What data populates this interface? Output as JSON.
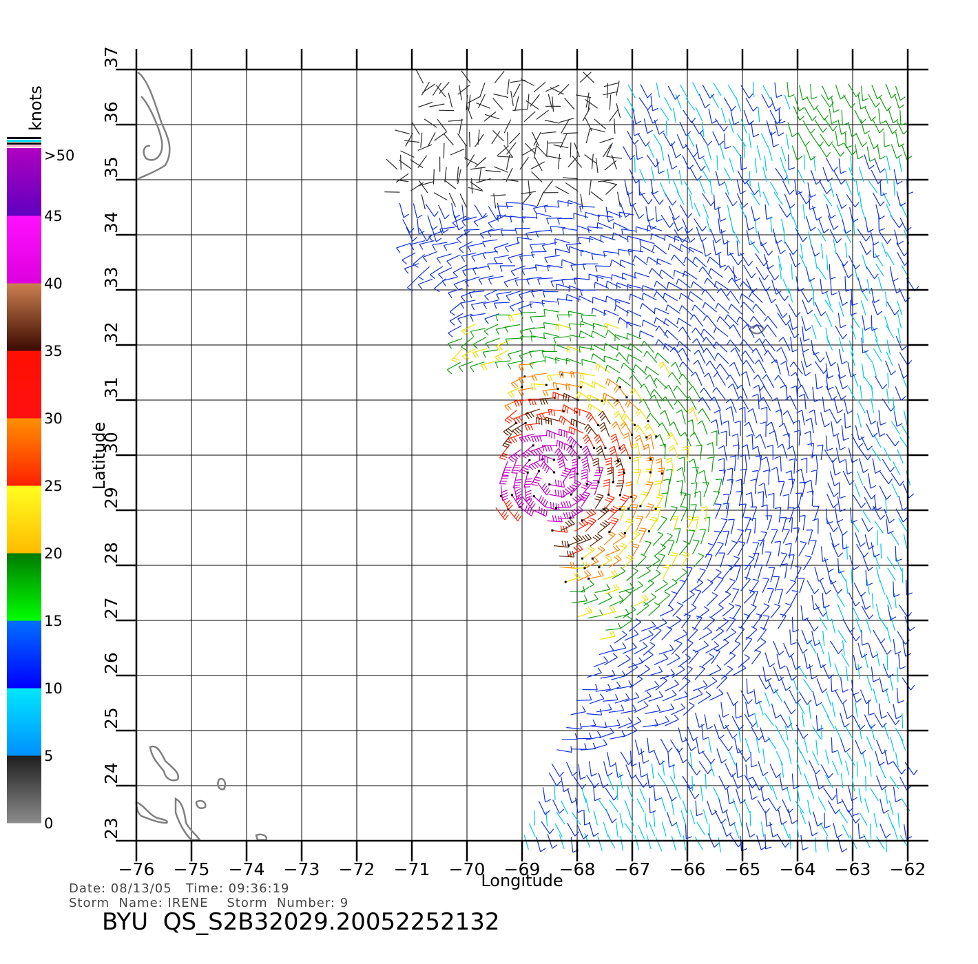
{
  "map": {
    "xlabel": "Longitude",
    "ylabel": "Latitude",
    "lon_range": [
      -76,
      -62
    ],
    "lat_range": [
      23,
      37
    ],
    "x_ticks": [
      "-76",
      "-75",
      "-74",
      "-73",
      "-72",
      "-71",
      "-70",
      "-69",
      "-68",
      "-67",
      "-66",
      "-65",
      "-64",
      "-63",
      "-62"
    ],
    "y_ticks": [
      "23",
      "24",
      "25",
      "26",
      "27",
      "28",
      "29",
      "30",
      "31",
      "32",
      "33",
      "34",
      "35",
      "36",
      "37"
    ],
    "grid": true,
    "storm_center": {
      "lon": -68.5,
      "lat": 29.6
    },
    "island_color": "#7f7f7f"
  },
  "colorbar": {
    "unit": "knots",
    "labels": [
      "0",
      "5",
      "10",
      "15",
      "20",
      "25",
      "30",
      "35",
      "40",
      "45",
      ">50"
    ],
    "bands": [
      {
        "from": 0,
        "to": 5,
        "top": "#1e1e1e",
        "bottom": "#8c8c8c"
      },
      {
        "from": 5,
        "to": 10,
        "top": "#00e8ff",
        "bottom": "#0090ff"
      },
      {
        "from": 10,
        "to": 15,
        "top": "#0070ff",
        "bottom": "#0000ff"
      },
      {
        "from": 15,
        "to": 20,
        "top": "#007a00",
        "bottom": "#00ff00"
      },
      {
        "from": 20,
        "to": 25,
        "top": "#ffff20",
        "bottom": "#ffbb00"
      },
      {
        "from": 25,
        "to": 30,
        "top": "#ff9000",
        "bottom": "#ff2000"
      },
      {
        "from": 30,
        "to": 35,
        "top": "#ff1000",
        "bottom": "#ff1010"
      },
      {
        "from": 35,
        "to": 40,
        "top": "#cc8050",
        "bottom": "#3c0a00"
      },
      {
        "from": 40,
        "to": 45,
        "top": "#ff10ff",
        "bottom": "#dd00dd"
      },
      {
        "from": 45,
        "to": 50,
        "top": "#b000c0",
        "bottom": "#6000c0"
      }
    ]
  },
  "footer": {
    "date_time": "Date: 08/13/05   Time: 09:36:19",
    "storm_line": "Storm  Name: IRENE    Storm  Number: 9",
    "product": "BYU  QS_S2B32029.20052252132"
  }
}
